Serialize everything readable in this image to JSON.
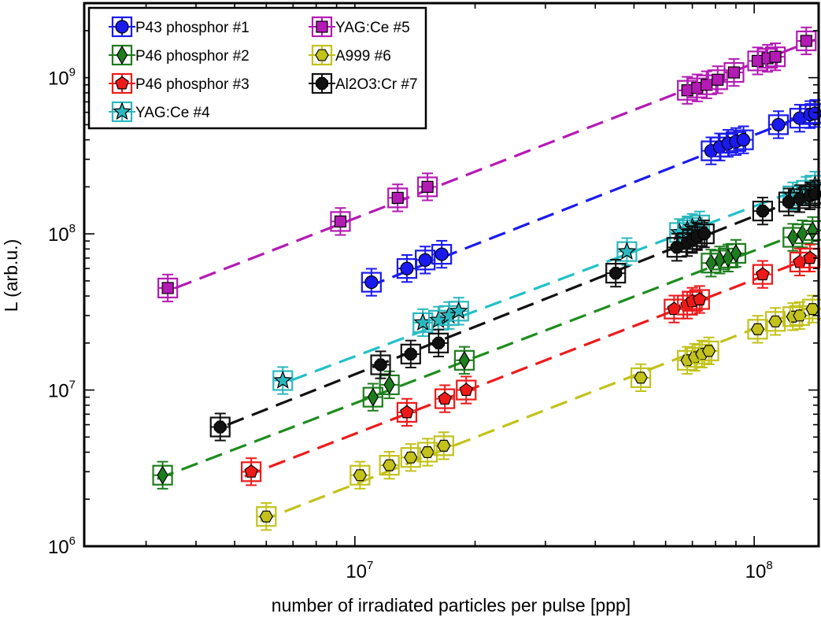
{
  "chart_data": {
    "type": "scatter",
    "title": "",
    "xlabel": "number of irradiated particles per pulse [ppp]",
    "ylabel": "L (arb.u.)",
    "xscale": "log",
    "yscale": "log",
    "xlim": [
      2100000.0,
      145000000.0
    ],
    "ylim": [
      1000000.0,
      3000000000.0
    ],
    "xticks": [
      {
        "value": 10000000.0,
        "base": "10",
        "exp": "7"
      },
      {
        "value": 100000000.0,
        "base": "10",
        "exp": "8"
      }
    ],
    "yticks": [
      {
        "value": 1000000.0,
        "base": "10",
        "exp": "6"
      },
      {
        "value": 10000000.0,
        "base": "10",
        "exp": "7"
      },
      {
        "value": 100000000.0,
        "base": "10",
        "exp": "8"
      },
      {
        "value": 1000000000.0,
        "base": "10",
        "exp": "9"
      }
    ],
    "grid": false,
    "legend_position": "top-left",
    "series": [
      {
        "name": "P43 phosphor #1",
        "marker": "circle",
        "color": "#1a1aee",
        "fit_color": "#1a1aee",
        "x": [
          11000000.0,
          13500000.0,
          15000000.0,
          16500000.0,
          78000000.0,
          82000000.0,
          86000000.0,
          90000000.0,
          94000000.0,
          115000000.0,
          130000000.0,
          138000000.0,
          142000000.0
        ],
        "y": [
          49000000.0,
          60000000.0,
          68000000.0,
          74000000.0,
          340000000.0,
          360000000.0,
          380000000.0,
          390000000.0,
          400000000.0,
          500000000.0,
          550000000.0,
          580000000.0,
          590000000.0
        ],
        "fit": [
          [
            10800000.0,
            46000000.0
          ],
          [
            142000000.0,
            610000000.0
          ]
        ]
      },
      {
        "name": "P46 phosphor #2",
        "marker": "diamond",
        "color": "#1e7d1e",
        "fit_color": "#1e8c1e",
        "x": [
          3300000.0,
          11100000.0,
          12200000.0,
          18800000.0,
          78000000.0,
          82000000.0,
          86000000.0,
          90000000.0,
          125000000.0,
          132000000.0,
          140000000.0
        ],
        "y": [
          2850000.0,
          9000000.0,
          10800000.0,
          15500000.0,
          65000000.0,
          68000000.0,
          70000000.0,
          75000000.0,
          95000000.0,
          100000000.0,
          105000000.0
        ],
        "fit": [
          [
            3200000.0,
            2700000.0
          ],
          [
            142000000.0,
            110000000.0
          ]
        ]
      },
      {
        "name": "P46 phosphor #3",
        "marker": "pentagon",
        "color": "#ee1a1a",
        "fit_color": "#ee1a1a",
        "x": [
          5500000.0,
          13500000.0,
          16800000.0,
          19000000.0,
          63000000.0,
          68000000.0,
          70000000.0,
          73000000.0,
          105000000.0,
          130000000.0,
          138000000.0
        ],
        "y": [
          3000000.0,
          7200000.0,
          8800000.0,
          10000000.0,
          33000000.0,
          35000000.0,
          37000000.0,
          38000000.0,
          55000000.0,
          66000000.0,
          70000000.0
        ],
        "fit": [
          [
            5300000.0,
            2800000.0
          ],
          [
            142000000.0,
            72000000.0
          ]
        ]
      },
      {
        "name": "YAG:Ce #4",
        "marker": "star",
        "color": "#2ab8c0",
        "fit_color": "#22c0c8",
        "x": [
          6600000.0,
          14800000.0,
          16200000.0,
          17200000.0,
          18200000.0,
          48000000.0,
          65000000.0,
          68000000.0,
          70000000.0,
          73000000.0,
          125000000.0,
          135000000.0,
          142000000.0
        ],
        "y": [
          11500000.0,
          27000000.0,
          28000000.0,
          30000000.0,
          32000000.0,
          77000000.0,
          102000000.0,
          106000000.0,
          110000000.0,
          114000000.0,
          175000000.0,
          190000000.0,
          205000000.0
        ],
        "fit": [
          [
            6900000.0,
            11500000.0
          ],
          [
            142000000.0,
            210000000.0
          ]
        ]
      },
      {
        "name": "YAG:Ce #5",
        "marker": "square",
        "color": "#b41ab4",
        "fit_color": "#b41ab4",
        "x": [
          3400000.0,
          9200000.0,
          12800000.0,
          15200000.0,
          68000000.0,
          72000000.0,
          76000000.0,
          81000000.0,
          89000000.0,
          102000000.0,
          108000000.0,
          113000000.0,
          135000000.0
        ],
        "y": [
          45000000.0,
          120000000.0,
          170000000.0,
          200000000.0,
          830000000.0,
          860000000.0,
          900000000.0,
          970000000.0,
          1080000000.0,
          1280000000.0,
          1330000000.0,
          1360000000.0,
          1720000000.0
        ],
        "fit": [
          [
            3550000.0,
            45000000.0
          ],
          [
            142000000.0,
            1750000000.0
          ]
        ]
      },
      {
        "name": "A999 #6",
        "marker": "hexagon",
        "color": "#c2c21a",
        "fit_color": "#c2c21a",
        "x": [
          6000000.0,
          10300000.0,
          12200000.0,
          13800000.0,
          15200000.0,
          16700000.0,
          52000000.0,
          68000000.0,
          71000000.0,
          74000000.0,
          77000000.0,
          102000000.0,
          113000000.0,
          125000000.0,
          130000000.0,
          140000000.0
        ],
        "y": [
          1550000.0,
          2850000.0,
          3300000.0,
          3700000.0,
          4000000.0,
          4400000.0,
          12000000.0,
          15500000.0,
          16200000.0,
          17000000.0,
          17800000.0,
          24500000.0,
          27500000.0,
          29500000.0,
          30000000.0,
          33000000.0
        ],
        "fit": [
          [
            5800000.0,
            1450000.0
          ],
          [
            142000000.0,
            35000000.0
          ]
        ]
      },
      {
        "name": "Al2O3:Cr #7",
        "marker": "octagon",
        "color": "#111111",
        "fit_color": "#111111",
        "x": [
          4600000.0,
          11600000.0,
          13800000.0,
          16200000.0,
          45000000.0,
          64000000.0,
          68000000.0,
          70000000.0,
          72000000.0,
          75000000.0,
          105000000.0,
          122000000.0,
          130000000.0,
          138000000.0,
          142000000.0
        ],
        "y": [
          5800000.0,
          14500000.0,
          17000000.0,
          20000000.0,
          56000000.0,
          82000000.0,
          88000000.0,
          92000000.0,
          96000000.0,
          100000000.0,
          140000000.0,
          160000000.0,
          168000000.0,
          175000000.0,
          180000000.0
        ],
        "fit": [
          [
            4800000.0,
            6000000.0
          ],
          [
            142000000.0,
            185000000.0
          ]
        ]
      }
    ]
  }
}
